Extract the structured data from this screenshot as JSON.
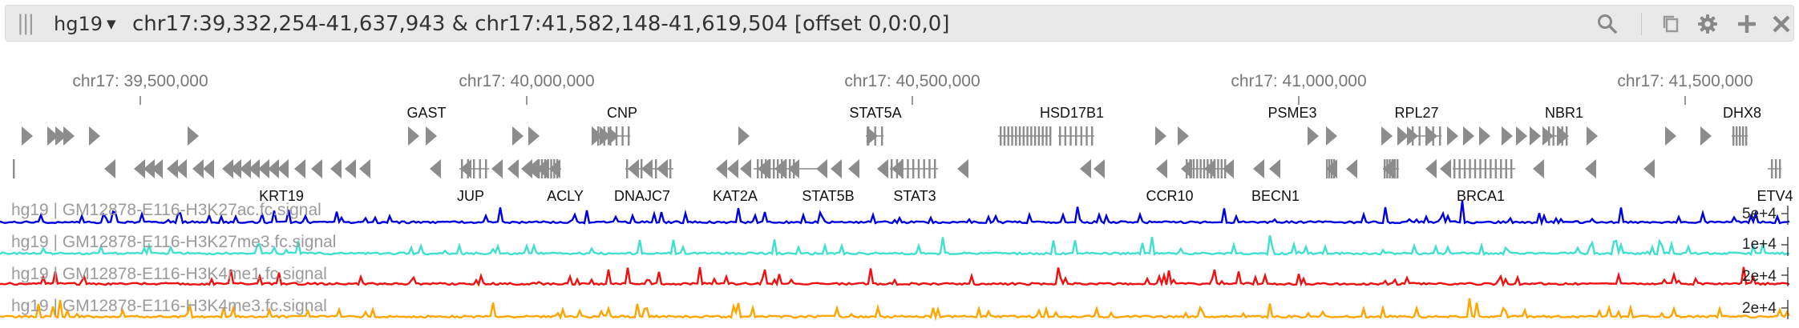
{
  "toolbar": {
    "drag_handle": "|||",
    "assembly": "hg19",
    "locus": "chr17:39,332,254-41,637,943 & chr17:41,582,148-41,619,504 [offset 0,0:0,0]",
    "icons": [
      "search-icon",
      "copy-icon",
      "gear-icon",
      "plus-icon",
      "close-icon"
    ]
  },
  "ruler": {
    "labels": [
      "chr17: 39,500,000",
      "chr17: 40,000,000",
      "chr17: 40,500,000",
      "chr17: 41,000,000",
      "chr17: 41,500,000"
    ]
  },
  "genes": {
    "top": [
      "GAST",
      "CNP",
      "STAT5A",
      "HSD17B1",
      "PSME3",
      "RPL27",
      "NBR1",
      "DHX8"
    ],
    "bottom": [
      "KRT19",
      "JUP",
      "ACLY",
      "DNAJC7",
      "KAT2A",
      "STAT5B",
      "STAT3",
      "CCR10",
      "BECN1",
      "BRCA1",
      "ETV4"
    ]
  },
  "tracks": [
    {
      "label": "hg19 | GM12878-E116-H3K27ac.fc.signal",
      "scale": "5e+4",
      "color": "#0000dd"
    },
    {
      "label": "hg19 | GM12878-E116-H3K27me3.fc.signal",
      "scale": "1e+4",
      "color": "#40e0d0"
    },
    {
      "label": "hg19 | GM12878-E116-H3K4me1.fc.signal",
      "scale": "2e+4",
      "color": "#ee1111"
    },
    {
      "label": "hg19 | GM12878-E116-H3K4me3.fc.signal",
      "scale": "2e+4",
      "color": "#ffa500"
    }
  ],
  "colors": {
    "gene_glyph": "#8c8c8c",
    "ruler_text": "#777777",
    "gene_label": "#111111"
  }
}
